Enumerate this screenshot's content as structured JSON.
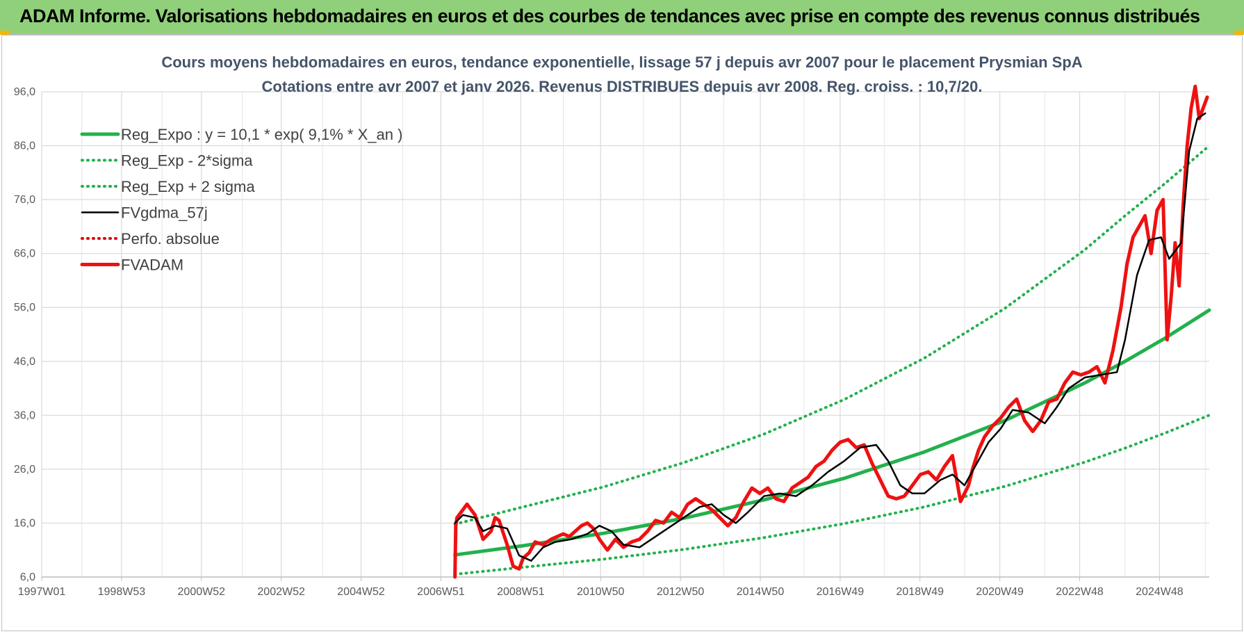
{
  "header": {
    "title": "ADAM Informe. Valorisations hebdomadaires en euros et des courbes de tendances avec prise en compte des revenus connus distribués"
  },
  "chart_data": {
    "type": "line",
    "title": "Cours moyens hebdomadaires en euros, tendance exponentielle, lissage 57 j depuis avr 2007 pour le placement Prysmian SpA",
    "subtitle": "Cotations entre avr 2007 et janv 2026.  Revenus DISTRIBUES depuis avr 2008. Reg. croiss. : 10,7/20.",
    "xlabel": "",
    "ylabel": "",
    "x_tick_labels": [
      "1997W01",
      "1998W53",
      "2000W52",
      "2002W52",
      "2004W52",
      "2006W51",
      "2008W51",
      "2010W50",
      "2012W50",
      "2014W50",
      "2016W49",
      "2018W49",
      "2020W49",
      "2022W48",
      "2024W48"
    ],
    "x_range_years": [
      1997.0,
      2026.1
    ],
    "y_tick_labels": [
      "6,0",
      "16,0",
      "26,0",
      "36,0",
      "46,0",
      "56,0",
      "66,0",
      "76,0",
      "86,0",
      "96,0"
    ],
    "ylim": [
      6,
      96
    ],
    "grid": true,
    "legend_position": "top-left",
    "legend": [
      {
        "name": "Reg_Expo : y = 10,1 * exp( 9,1% *  X_an )",
        "color": "#22b14c",
        "style": "solid-thick"
      },
      {
        "name": "Reg_Exp - 2*sigma",
        "color": "#22b14c",
        "style": "dotted"
      },
      {
        "name": "Reg_Exp + 2 sigma",
        "color": "#22b14c",
        "style": "dotted"
      },
      {
        "name": "FVgdma_57j",
        "color": "#000000",
        "style": "solid"
      },
      {
        "name": "Perfo. absolue",
        "color": "#e00000",
        "style": "dotted"
      },
      {
        "name": "FVADAM",
        "color": "#ee1111",
        "style": "solid-thick"
      }
    ],
    "series": [
      {
        "name": "Reg_Expo : y = 10,1 * exp( 9,1% *  X_an )",
        "x": [
          2007.3,
          2009,
          2011,
          2013,
          2015,
          2017,
          2019,
          2021,
          2023,
          2024,
          2025,
          2026.1
        ],
        "y": [
          10.1,
          11.8,
          14.1,
          16.9,
          20.3,
          24.3,
          29.2,
          35.0,
          42.0,
          46.0,
          50.3,
          55.5
        ]
      },
      {
        "name": "Reg_Exp - 2*sigma",
        "x": [
          2007.3,
          2009,
          2011,
          2013,
          2015,
          2017,
          2019,
          2021,
          2023,
          2024,
          2025,
          2026.1
        ],
        "y": [
          6.5,
          7.8,
          9.3,
          11.1,
          13.3,
          15.9,
          19.0,
          22.8,
          27.3,
          29.9,
          32.7,
          36.0
        ]
      },
      {
        "name": "Reg_Exp + 2 sigma",
        "x": [
          2007.3,
          2009,
          2011,
          2013,
          2015,
          2017,
          2019,
          2021,
          2023,
          2024,
          2025,
          2026.1
        ],
        "y": [
          15.8,
          19.0,
          22.7,
          27.2,
          32.5,
          38.9,
          46.6,
          55.8,
          66.7,
          73.0,
          79.0,
          86.0
        ]
      },
      {
        "name": "FVgdma_57j",
        "x": [
          2007.3,
          2007.5,
          2007.8,
          2008.0,
          2008.3,
          2008.6,
          2008.9,
          2009.2,
          2009.5,
          2009.8,
          2010.2,
          2010.6,
          2010.9,
          2011.2,
          2011.5,
          2011.9,
          2012.3,
          2012.7,
          2013.0,
          2013.4,
          2013.7,
          2014.0,
          2014.3,
          2014.6,
          2015.0,
          2015.4,
          2015.8,
          2016.2,
          2016.6,
          2017.0,
          2017.4,
          2017.8,
          2018.1,
          2018.4,
          2018.7,
          2019.0,
          2019.4,
          2019.7,
          2020.0,
          2020.3,
          2020.6,
          2020.9,
          2021.2,
          2021.6,
          2022.0,
          2022.3,
          2022.6,
          2023.0,
          2023.4,
          2023.8,
          2024.0,
          2024.3,
          2024.6,
          2024.9,
          2025.1,
          2025.4,
          2025.6,
          2025.8,
          2026.0
        ],
        "y": [
          16.0,
          17.5,
          17.0,
          14.5,
          15.5,
          15.0,
          10.0,
          9.0,
          11.5,
          12.5,
          13.0,
          14.0,
          15.5,
          14.5,
          12.0,
          11.5,
          13.5,
          15.5,
          17.0,
          19.0,
          19.5,
          17.5,
          16.0,
          18.0,
          21.0,
          21.5,
          21.0,
          23.0,
          25.5,
          27.5,
          30.0,
          30.5,
          27.5,
          23.0,
          21.5,
          21.5,
          24.0,
          25.0,
          23.0,
          27.0,
          31.0,
          33.5,
          37.0,
          36.5,
          34.5,
          37.5,
          41.0,
          43.0,
          43.5,
          44.0,
          50.0,
          62.0,
          68.5,
          69.0,
          65.0,
          68.0,
          85.0,
          91.0,
          92.0
        ]
      },
      {
        "name": "FVADAM",
        "x": [
          2007.3,
          2007.32,
          2007.35,
          2007.5,
          2007.6,
          2007.8,
          2008.0,
          2008.2,
          2008.3,
          2008.4,
          2008.6,
          2008.75,
          2008.9,
          2009.0,
          2009.15,
          2009.3,
          2009.5,
          2009.7,
          2009.85,
          2010.0,
          2010.15,
          2010.3,
          2010.45,
          2010.6,
          2010.75,
          2010.9,
          2011.1,
          2011.3,
          2011.5,
          2011.7,
          2011.9,
          2012.1,
          2012.3,
          2012.5,
          2012.7,
          2012.9,
          2013.1,
          2013.3,
          2013.5,
          2013.7,
          2013.9,
          2014.1,
          2014.3,
          2014.5,
          2014.7,
          2014.9,
          2015.1,
          2015.3,
          2015.5,
          2015.7,
          2015.9,
          2016.1,
          2016.3,
          2016.5,
          2016.7,
          2016.9,
          2017.1,
          2017.3,
          2017.5,
          2017.7,
          2017.9,
          2018.1,
          2018.3,
          2018.5,
          2018.7,
          2018.9,
          2019.1,
          2019.3,
          2019.5,
          2019.7,
          2019.9,
          2020.1,
          2020.2,
          2020.35,
          2020.5,
          2020.7,
          2020.9,
          2021.1,
          2021.3,
          2021.5,
          2021.7,
          2021.9,
          2022.1,
          2022.3,
          2022.5,
          2022.7,
          2022.9,
          2023.1,
          2023.3,
          2023.5,
          2023.7,
          2023.9,
          2024.05,
          2024.2,
          2024.35,
          2024.5,
          2024.65,
          2024.8,
          2024.95,
          2025.05,
          2025.15,
          2025.25,
          2025.35,
          2025.45,
          2025.55,
          2025.65,
          2025.75,
          2025.85,
          2025.95,
          2026.05
        ],
        "y": [
          6.0,
          15.5,
          17.0,
          18.5,
          19.5,
          17.5,
          13.0,
          14.5,
          17.0,
          16.5,
          12.0,
          8.0,
          7.5,
          9.5,
          10.5,
          12.5,
          12.0,
          13.0,
          13.5,
          14.0,
          13.5,
          14.5,
          15.5,
          16.0,
          15.0,
          13.0,
          11.0,
          13.0,
          11.5,
          12.5,
          13.0,
          14.5,
          16.5,
          16.0,
          18.0,
          17.0,
          19.5,
          20.5,
          19.5,
          18.5,
          17.0,
          15.5,
          17.0,
          20.0,
          22.5,
          21.5,
          22.5,
          20.5,
          20.0,
          22.5,
          23.5,
          24.5,
          26.5,
          27.5,
          29.5,
          31.0,
          31.5,
          30.0,
          30.5,
          27.0,
          24.0,
          21.0,
          20.5,
          21.0,
          23.0,
          25.0,
          25.5,
          24.0,
          26.5,
          28.5,
          20.0,
          23.0,
          26.0,
          29.5,
          32.0,
          34.0,
          35.5,
          37.5,
          39.0,
          35.0,
          33.0,
          35.0,
          38.5,
          39.0,
          42.0,
          44.0,
          43.5,
          44.0,
          45.0,
          42.0,
          48.0,
          56.0,
          64.0,
          69.0,
          71.0,
          73.0,
          66.0,
          74.0,
          76.0,
          50.0,
          58.0,
          68.0,
          60.0,
          75.0,
          86.0,
          93.0,
          97.0,
          91.0,
          93.0,
          95.0
        ]
      }
    ]
  }
}
